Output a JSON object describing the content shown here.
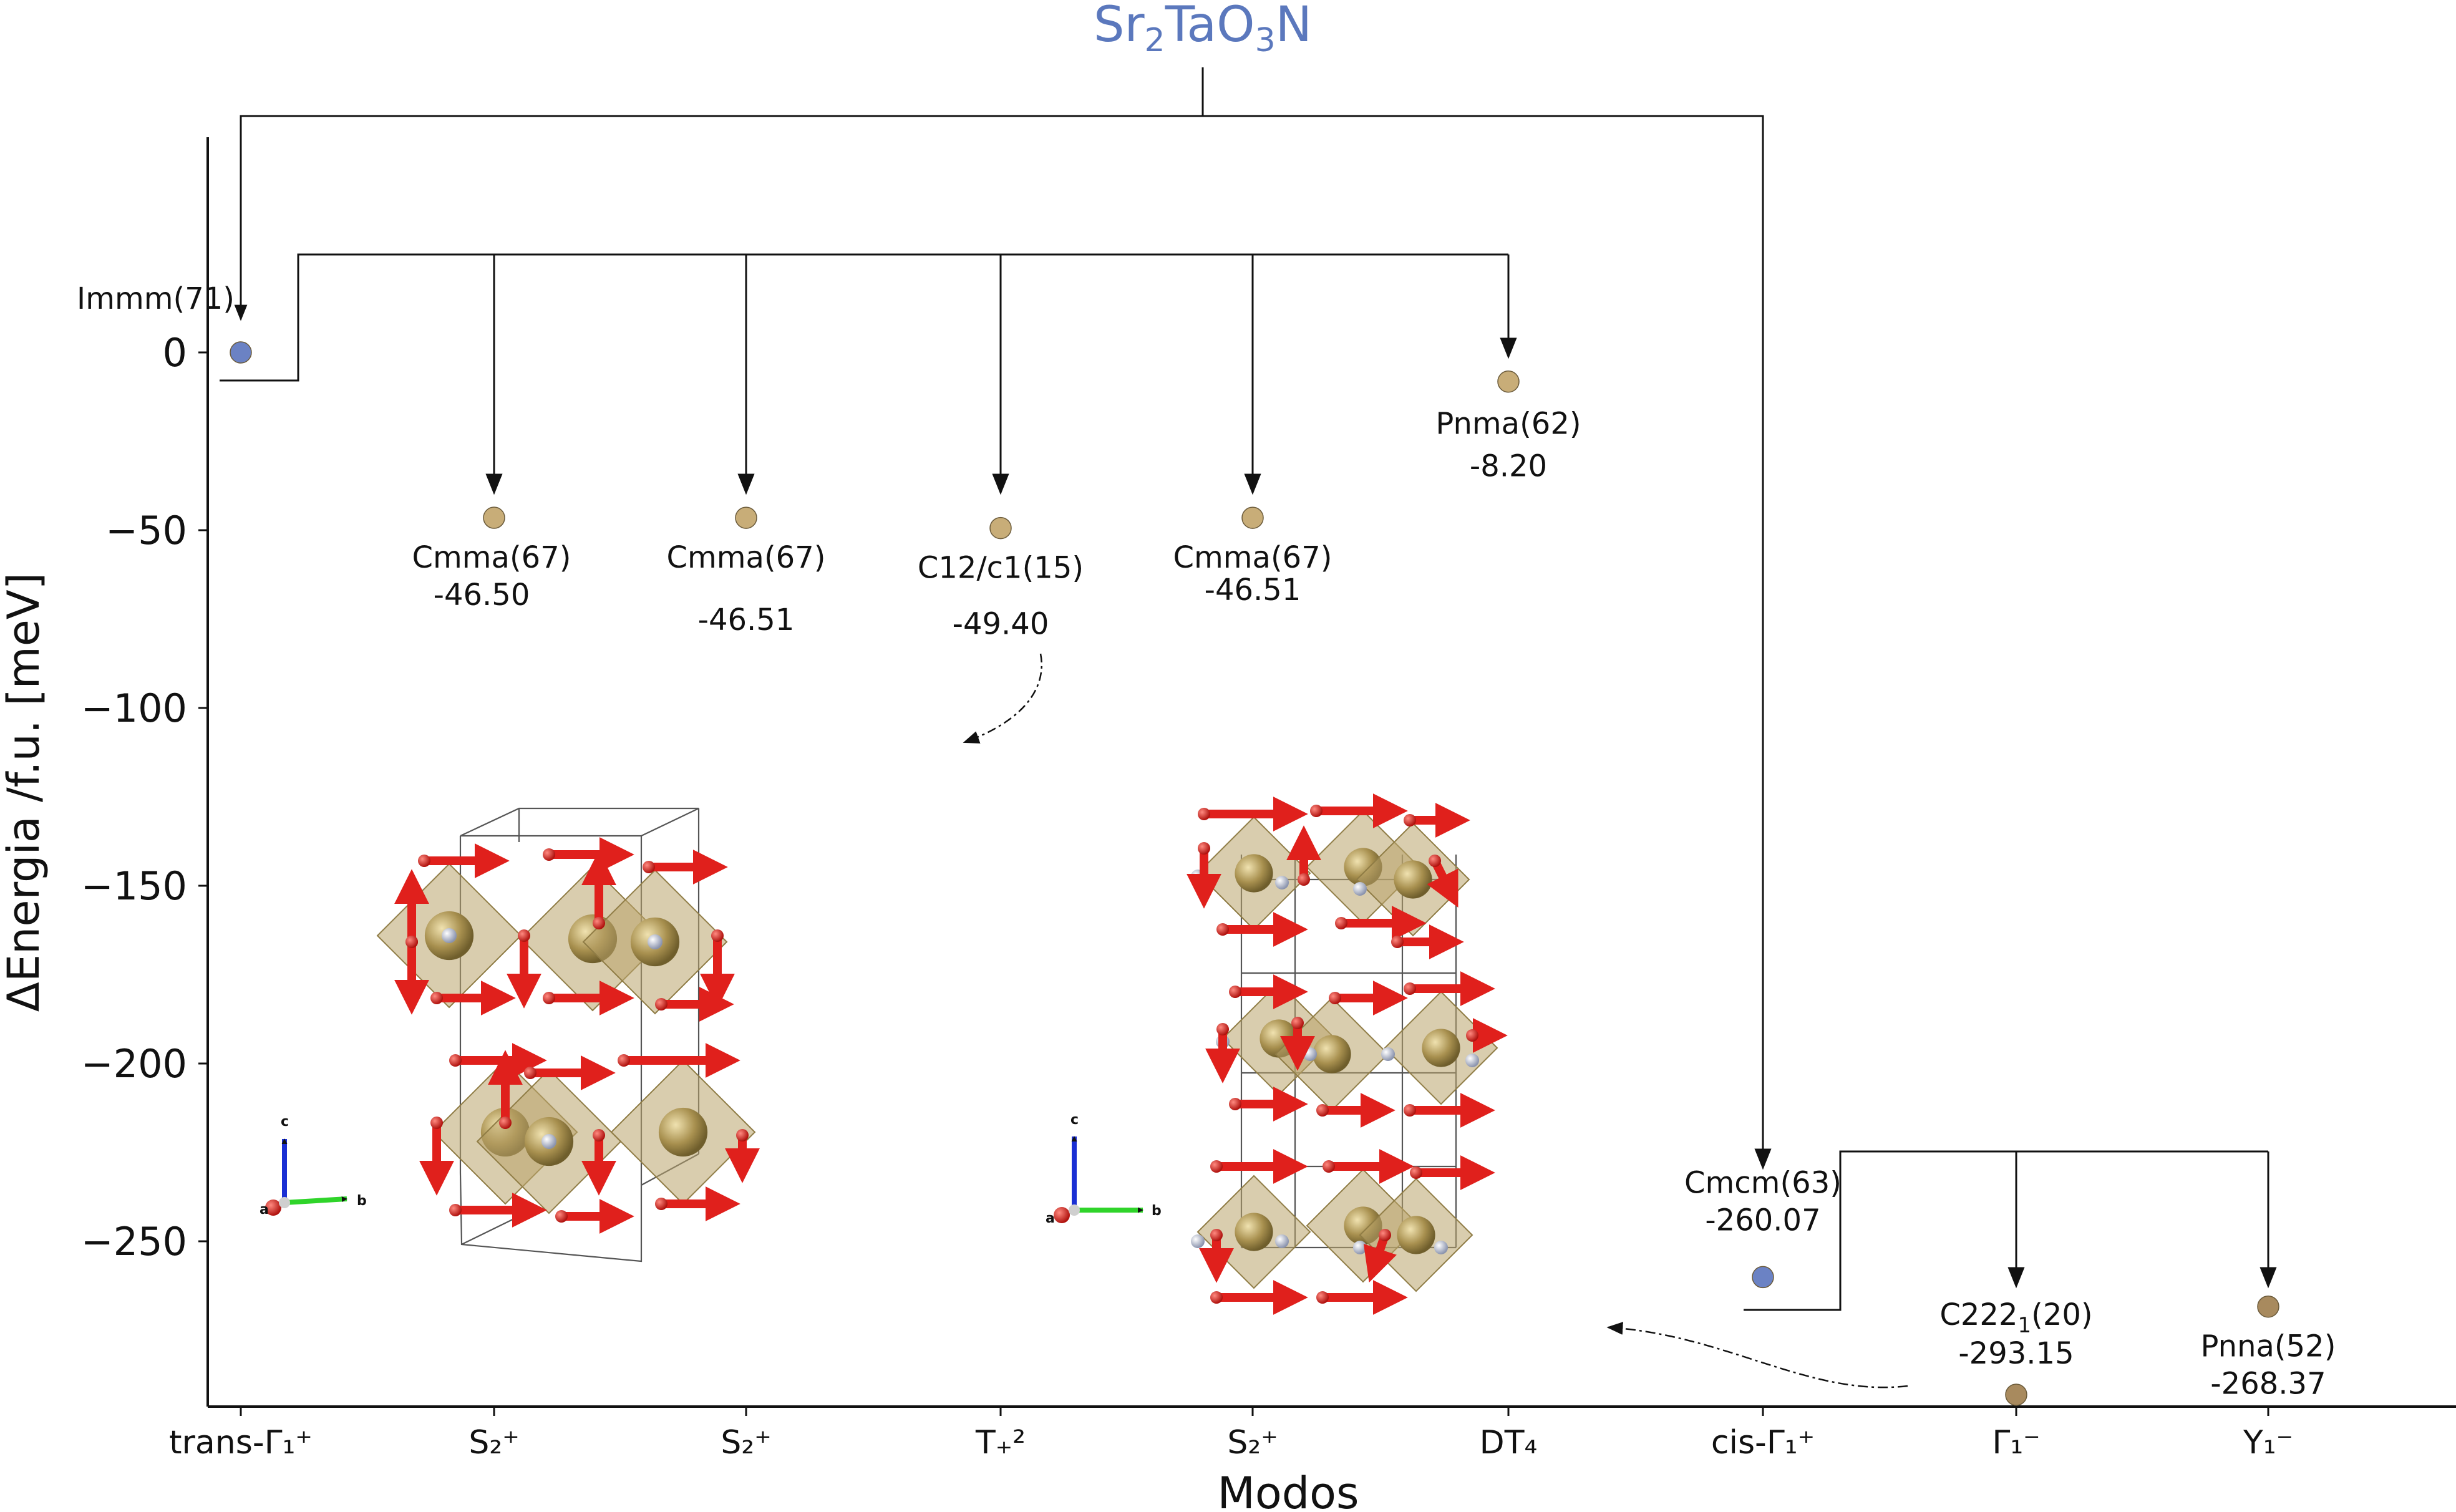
{
  "chart_data": {
    "type": "scatter",
    "title": "Sr₂TaO₃N",
    "xlabel": "Modos",
    "ylabel": "ΔEnergia /f.u. [meV]",
    "ylim": [
      -298,
      61
    ],
    "yticks": [
      0,
      -50,
      -100,
      -150,
      -200,
      -250
    ],
    "x_categories": [
      "trans-Γ₁⁺",
      "S₂⁺",
      "S₂⁺",
      "T₊²",
      "S₂⁺",
      "DT₄",
      "cis-Γ₁⁺",
      "Γ₁⁻",
      "Y₁⁻"
    ],
    "points": [
      {
        "x": "trans-Γ₁⁺",
        "y": 0,
        "group": "parent",
        "color": "#6b82c4",
        "name": "Immm(71)",
        "value": ""
      },
      {
        "x": "S₂⁺",
        "y": -46.5,
        "group": "distorted",
        "color": "#c8ad78",
        "name": "Cmma(67)",
        "value": "-46.50"
      },
      {
        "x": "S₂⁺",
        "y": -46.51,
        "group": "distorted",
        "color": "#c8ad78",
        "name": "Cmma(67)",
        "value": "-46.51"
      },
      {
        "x": "T₊²",
        "y": -49.4,
        "group": "distorted",
        "color": "#c8ad78",
        "name": "C12/c1(15)",
        "value": "-49.40"
      },
      {
        "x": "S₂⁺",
        "y": -46.51,
        "group": "distorted",
        "color": "#c8ad78",
        "name": "Cmma(67)",
        "value": "-46.51"
      },
      {
        "x": "DT₄",
        "y": -8.2,
        "group": "distorted",
        "color": "#c8ad78",
        "name": "Pnma(62)",
        "value": "-8.20"
      },
      {
        "x": "cis-Γ₁⁺",
        "y": -260.07,
        "group": "parent",
        "color": "#6b82c4",
        "name": "Cmcm(63)",
        "value": "-260.07"
      },
      {
        "x": "Γ₁⁻",
        "y": -293.15,
        "group": "distorted",
        "color": "#a88a5e",
        "name": "C222₁(20)",
        "value": "-293.15"
      },
      {
        "x": "Y₁⁻",
        "y": -268.37,
        "group": "distorted",
        "color": "#a88a5e",
        "name": "Pnna(52)",
        "value": "-268.37"
      }
    ],
    "grid": false,
    "legend": "none"
  },
  "insets": {
    "left_axes": {
      "c": "c",
      "a": "a",
      "b": "b"
    },
    "right_axes": {
      "c": "c",
      "a": "a",
      "b": "b"
    }
  }
}
